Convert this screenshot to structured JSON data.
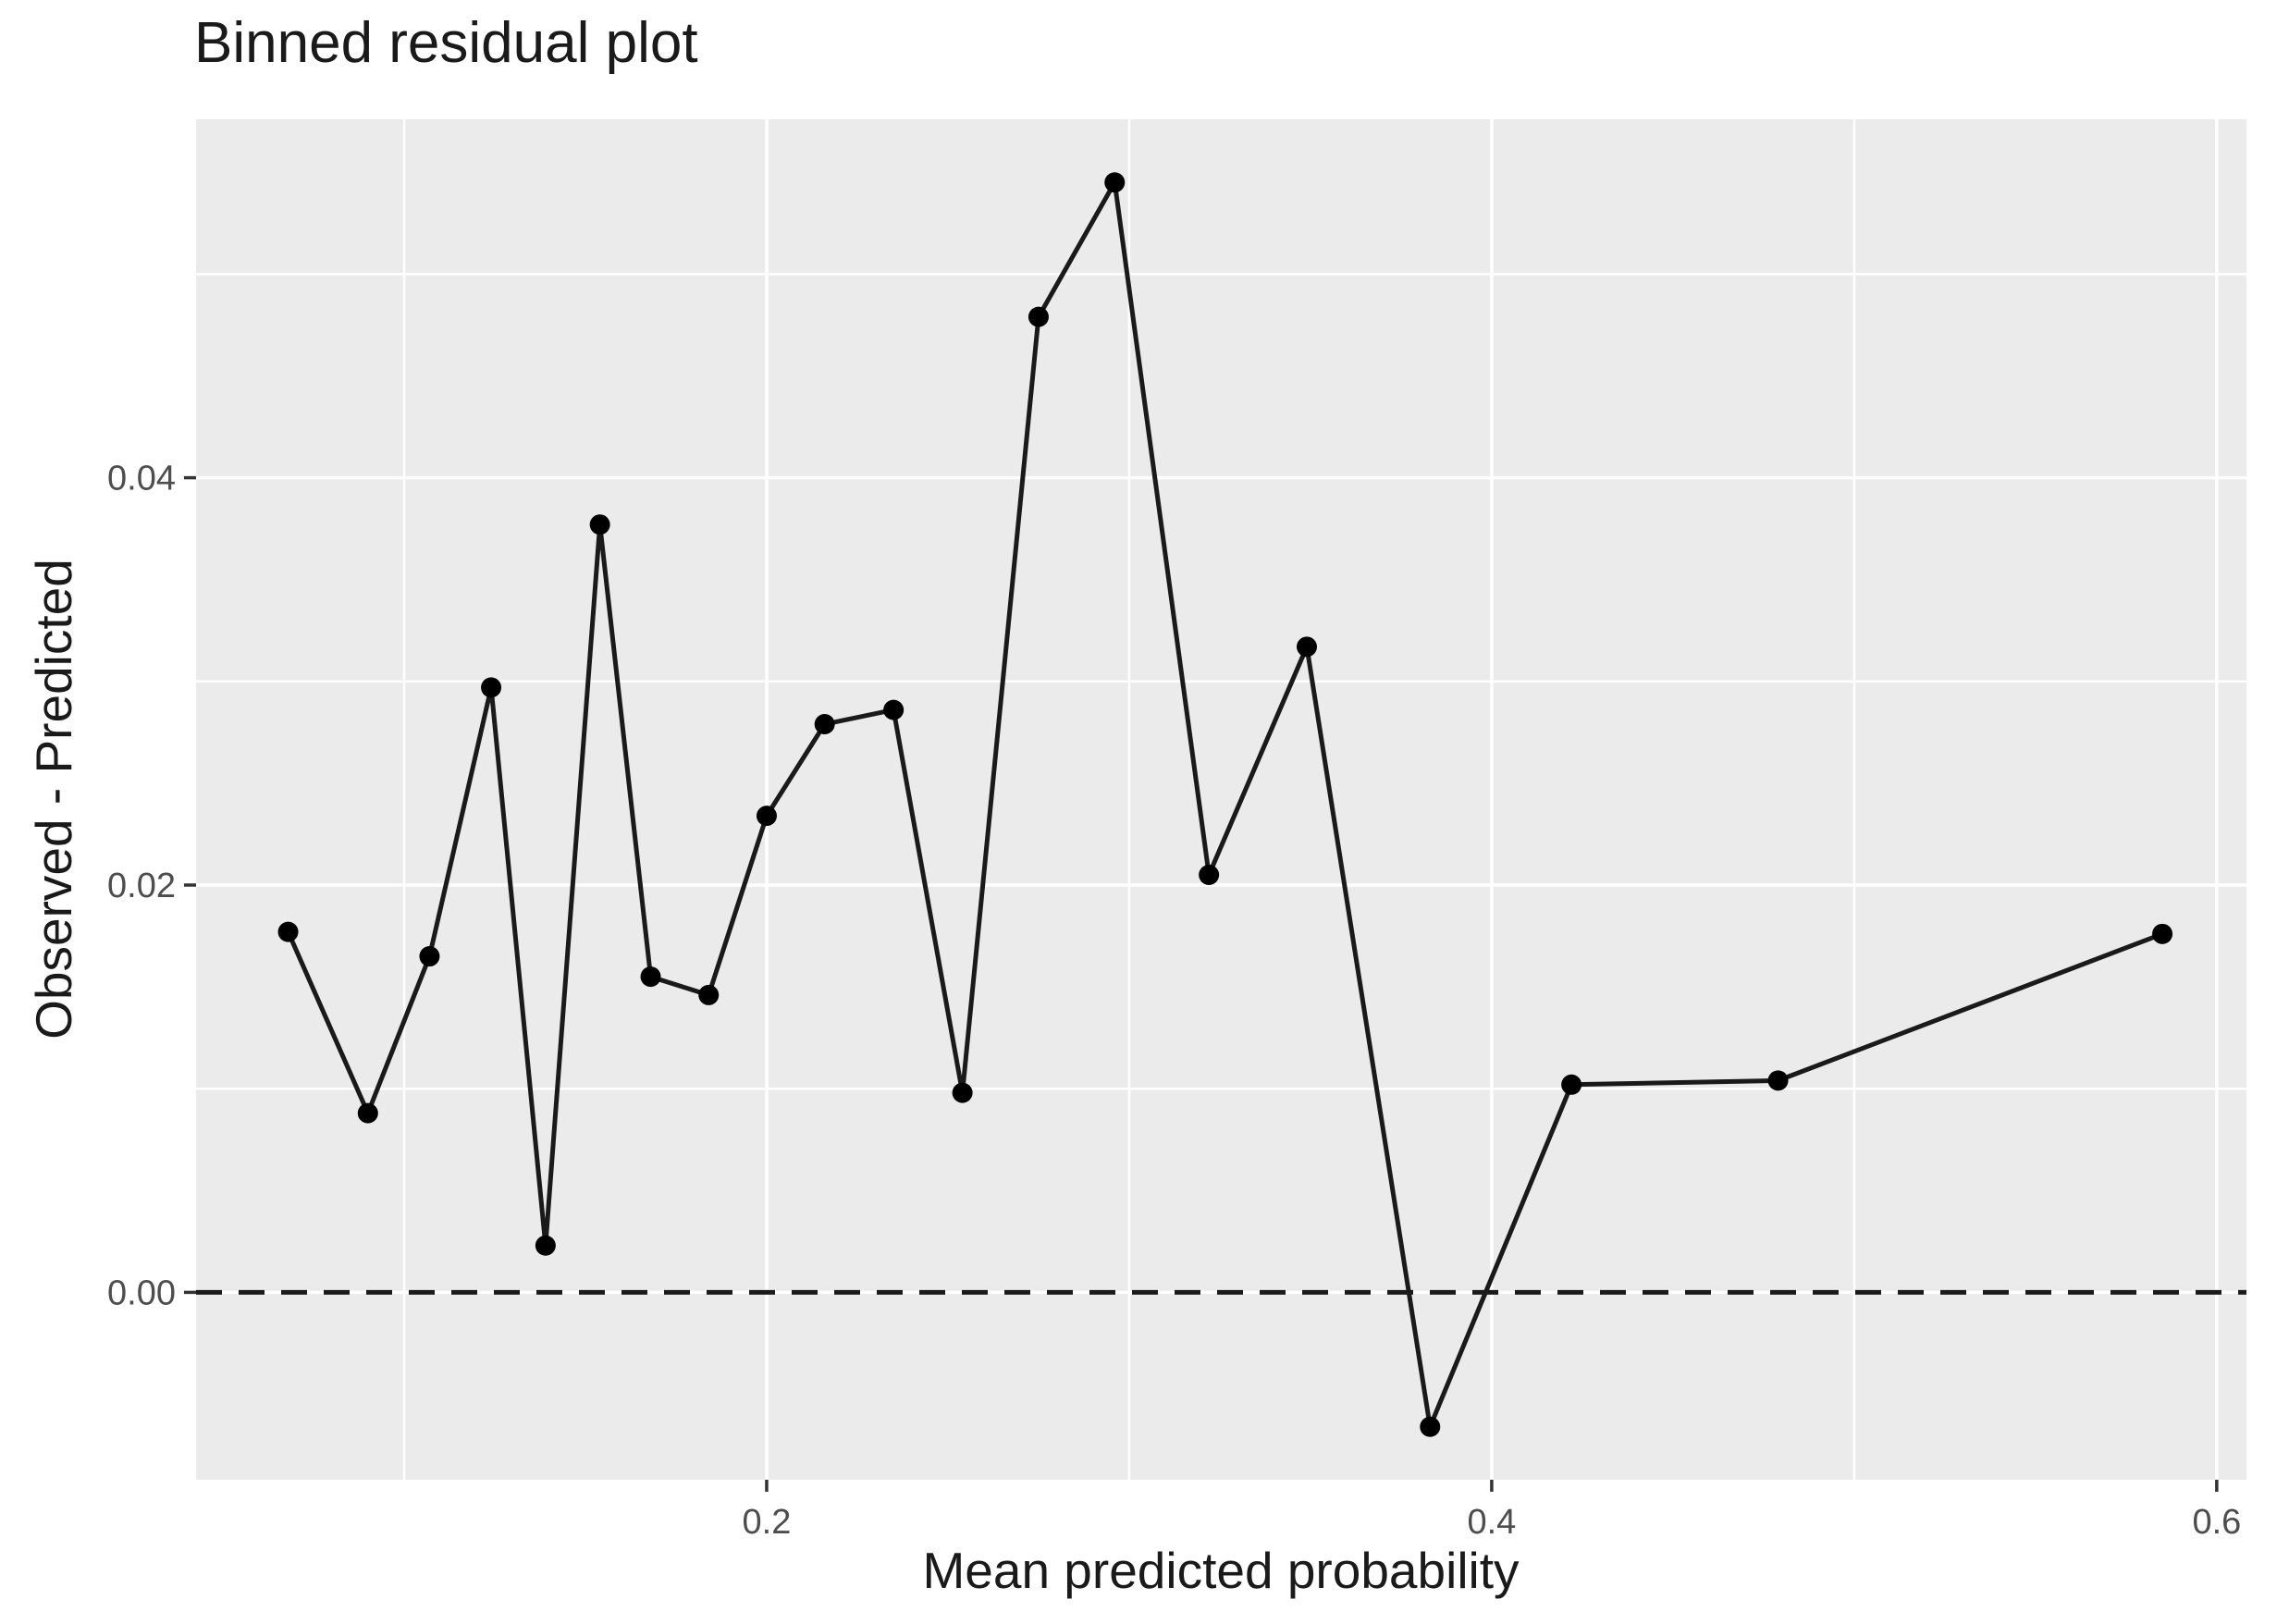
{
  "chart_data": {
    "type": "line",
    "title": "Binned residual plot",
    "xlabel": "Mean predicted probability",
    "ylabel": "Observed - Predicted",
    "xlim": [
      0.0426,
      0.6082
    ],
    "ylim": [
      -0.0092,
      0.0576
    ],
    "grid": "on",
    "legend": "none",
    "x_axis": {
      "major_tick_values": [
        0.2,
        0.4,
        0.6
      ],
      "major_tick_labels": [
        "0.2",
        "0.4",
        "0.6"
      ],
      "minor_tick_values": [
        0.1,
        0.3,
        0.5
      ]
    },
    "y_axis": {
      "major_tick_values": [
        0.0,
        0.02,
        0.04
      ],
      "major_tick_labels": [
        "0.00",
        "0.02",
        "0.04"
      ],
      "minor_tick_values": [
        0.01,
        0.03,
        0.05
      ]
    },
    "reference_line": {
      "y": 0,
      "style": "dashed"
    },
    "series": [
      {
        "name": "binned-residuals",
        "marker": "filled-circle",
        "points": [
          [
            0.068,
            0.0177
          ],
          [
            0.09,
            0.0088
          ],
          [
            0.107,
            0.0165
          ],
          [
            0.124,
            0.0297
          ],
          [
            0.139,
            0.0023
          ],
          [
            0.154,
            0.0377
          ],
          [
            0.168,
            0.0155
          ],
          [
            0.184,
            0.0146
          ],
          [
            0.2,
            0.0234
          ],
          [
            0.216,
            0.0279
          ],
          [
            0.235,
            0.0286
          ],
          [
            0.254,
            0.0098
          ],
          [
            0.275,
            0.0479
          ],
          [
            0.296,
            0.0545
          ],
          [
            0.322,
            0.0205
          ],
          [
            0.349,
            0.0317
          ],
          [
            0.383,
            -0.0066
          ],
          [
            0.422,
            0.0102
          ],
          [
            0.479,
            0.0104
          ],
          [
            0.585,
            0.0176
          ]
        ]
      }
    ],
    "colors": {
      "panel_background": "#EBEBEB",
      "gridline": "#FFFFFF",
      "line": "#1A1A1A",
      "point": "#000000",
      "reference_line": "#1A1A1A",
      "tick_label": "#4D4D4D",
      "tick_mark": "#333333",
      "title_text": "#1A1A1A"
    }
  }
}
